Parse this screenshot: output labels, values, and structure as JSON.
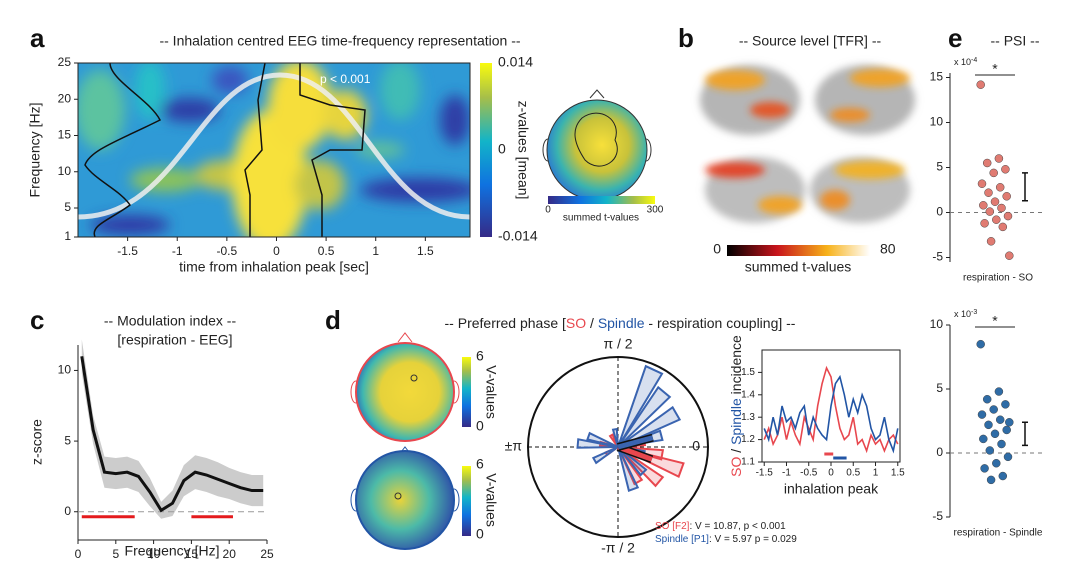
{
  "chart_data": [
    {
      "type": "heatmap",
      "label": "a",
      "title": "-- Inhalation centred EEG time-frequency representation --",
      "annotation": "p < 0.001",
      "x_label": "time from inhalation peak [sec]",
      "y_label": "Frequency [Hz]",
      "xlim": [
        -2,
        1.95
      ],
      "xticks": [
        -1.5,
        -1,
        -0.5,
        0,
        0.5,
        1,
        1.5
      ],
      "ylim": [
        1,
        25
      ],
      "yticks": [
        1,
        5,
        10,
        15,
        20,
        25
      ],
      "colorbar": {
        "label": "z-values [mean]",
        "lim": [
          -0.014,
          0.014
        ],
        "ticks": [
          -0.014,
          0,
          0.014
        ]
      },
      "topo_colorbar": {
        "label": "summed t-values",
        "lim": [
          0,
          300
        ],
        "ticks": [
          0,
          300
        ]
      }
    },
    {
      "type": "brain",
      "label": "b",
      "title": "-- Source level [TFR] --",
      "colorbar": {
        "label": "summed t-values",
        "lim": [
          0,
          80
        ],
        "ticks": [
          0,
          80
        ]
      }
    },
    {
      "type": "line",
      "label": "c",
      "title": "-- Modulation index --",
      "subtitle": "[respiration - EEG]",
      "x_label": "Frequency [Hz]",
      "y_label": "z-score",
      "color": "#111111",
      "band_color": "#cccccc",
      "range_color": "#e41a1c",
      "xlim": [
        0,
        25
      ],
      "xticks": [
        0,
        5,
        10,
        15,
        20,
        25
      ],
      "ylim": [
        -2,
        11.8
      ],
      "yticks": [
        0,
        5,
        10
      ],
      "x": [
        0.5,
        2,
        3.5,
        5,
        6.5,
        8,
        9.5,
        11,
        12.5,
        14,
        15.5,
        17,
        18.5,
        20,
        21.5,
        23,
        24.5
      ],
      "values": [
        11,
        5.8,
        2.8,
        2.7,
        2.8,
        2.5,
        1.4,
        0.1,
        0.6,
        2.2,
        2.8,
        2.6,
        2.3,
        2.0,
        1.7,
        1.5,
        1.5
      ],
      "errors": [
        1.2,
        1.0,
        1.1,
        1.1,
        1.1,
        1.1,
        1.0,
        0.6,
        0.9,
        1.1,
        1.2,
        1.2,
        1.2,
        1.1,
        1.1,
        1.1,
        1.1
      ],
      "significant_ranges": [
        [
          0.5,
          7.5
        ],
        [
          15,
          20.5
        ]
      ]
    },
    {
      "type": "polar",
      "label": "d",
      "title_parts": [
        {
          "text": "-- Preferred phase [",
          "color": "#222222"
        },
        {
          "text": "SO",
          "color": "#e8474e"
        },
        {
          "text": " / ",
          "color": "#222222"
        },
        {
          "text": "Spindle",
          "color": "#2255a5"
        },
        {
          "text": " - respiration coupling] --",
          "color": "#222222"
        }
      ],
      "topo_colorbar": {
        "label": "V-values",
        "lim": [
          0,
          6
        ],
        "ticks": [
          0,
          6
        ]
      },
      "polar_labels": {
        "top": "π / 2",
        "bottom": "-π / 2",
        "right": "0",
        "left": "±π"
      },
      "series": [
        {
          "name": "SO",
          "color": "#e8474e",
          "angles": [
            -20,
            -40,
            -60,
            10,
            170,
            -10,
            120,
            -150
          ],
          "lengths": [
            0.75,
            0.6,
            0.45,
            0.3,
            0.2,
            0.5,
            0.15,
            0.15
          ],
          "mean_angle": -20,
          "mean_length": 0.4
        },
        {
          "name": "Spindle",
          "color": "#3a64b0",
          "angles": [
            65,
            50,
            30,
            15,
            160,
            175,
            -150,
            -70,
            -45,
            -15,
            100
          ],
          "lengths": [
            0.95,
            0.8,
            0.75,
            0.5,
            0.35,
            0.45,
            0.3,
            0.5,
            0.4,
            0.3,
            0.2
          ],
          "mean_angle": 15,
          "mean_length": 0.4
        }
      ],
      "stats": [
        [
          {
            "text": "SO [F2]",
            "color": "#e8474e"
          },
          {
            "text": ": V = 10.87, p < 0.001",
            "color": "#222222"
          }
        ],
        [
          {
            "text": "Spindle [P1]",
            "color": "#2255a5"
          },
          {
            "text": ": V = 5.97 p = 0.029",
            "color": "#222222"
          }
        ]
      ],
      "inset": {
        "x_label": "inhalation peak",
        "y_label_parts": [
          {
            "text": "SO",
            "color": "#e8474e"
          },
          {
            "text": " / ",
            "color": "#222222"
          },
          {
            "text": "Spindle",
            "color": "#2255a5"
          },
          {
            "text": " incidence",
            "color": "#222222"
          }
        ],
        "xlim": [
          -1.55,
          1.55
        ],
        "xticks": [
          -1.5,
          -1,
          -0.5,
          0,
          0.5,
          1,
          1.5
        ],
        "ylim": [
          1.1,
          1.6
        ],
        "yticks": [
          1.1,
          1.2,
          1.3,
          1.4,
          1.5
        ],
        "x": [
          -1.5,
          -1.4,
          -1.3,
          -1.2,
          -1.1,
          -1,
          -0.9,
          -0.8,
          -0.7,
          -0.6,
          -0.5,
          -0.4,
          -0.3,
          -0.2,
          -0.1,
          0,
          0.1,
          0.2,
          0.3,
          0.4,
          0.5,
          0.6,
          0.7,
          0.8,
          0.9,
          1,
          1.1,
          1.2,
          1.3,
          1.4,
          1.5
        ],
        "series": [
          {
            "color": "#e8474e",
            "values": [
              1.2,
              1.25,
              1.18,
              1.22,
              1.3,
              1.2,
              1.28,
              1.22,
              1.18,
              1.3,
              1.25,
              1.2,
              1.35,
              1.45,
              1.52,
              1.48,
              1.35,
              1.25,
              1.2,
              1.22,
              1.3,
              1.18,
              1.2,
              1.15,
              1.22,
              1.18,
              1.2,
              1.15,
              1.2,
              1.22,
              1.18
            ],
            "significance": [
              -0.15,
              0.05
            ]
          },
          {
            "color": "#2255a5",
            "values": [
              1.25,
              1.2,
              1.3,
              1.22,
              1.35,
              1.28,
              1.3,
              1.25,
              1.32,
              1.35,
              1.22,
              1.3,
              1.25,
              1.22,
              1.2,
              1.35,
              1.45,
              1.48,
              1.4,
              1.3,
              1.38,
              1.32,
              1.4,
              1.35,
              1.25,
              1.2,
              1.22,
              1.3,
              1.2,
              1.15,
              1.25
            ],
            "significance": [
              0.05,
              0.35
            ]
          }
        ]
      }
    },
    {
      "type": "scatter",
      "label": "e",
      "title": "-- PSI --",
      "annotation": "*",
      "scale_label": "x 10",
      "scale_exponent": "-4",
      "x_label": "respiration - SO",
      "color": "#e07b72",
      "ylim": [
        -5.5,
        15.5
      ],
      "yticks": [
        -5,
        0,
        5,
        10,
        15
      ],
      "values": [
        14.2,
        6,
        5.5,
        4.8,
        4.4,
        3.2,
        2.8,
        2.2,
        1.8,
        1.2,
        0.8,
        0.5,
        0.1,
        -0.4,
        -0.8,
        -1.2,
        -1.6,
        -3.2,
        -4.8
      ],
      "mean": 2.85,
      "sem": 1.55
    },
    {
      "type": "scatter",
      "annotation": "*",
      "scale_label": "x 10",
      "scale_exponent": "-3",
      "x_label": "respiration - Spindle",
      "color": "#2f6ca6",
      "ylim": [
        -5,
        10
      ],
      "yticks": [
        -5,
        0,
        5,
        10
      ],
      "values": [
        8.5,
        4.8,
        4.2,
        3.8,
        3.4,
        3,
        2.6,
        2.2,
        1.8,
        1.5,
        1.1,
        0.7,
        0.2,
        -0.3,
        -0.8,
        -1.2,
        -1.8,
        -2.1,
        2.4
      ],
      "mean": 1.5,
      "sem": 0.9
    }
  ]
}
